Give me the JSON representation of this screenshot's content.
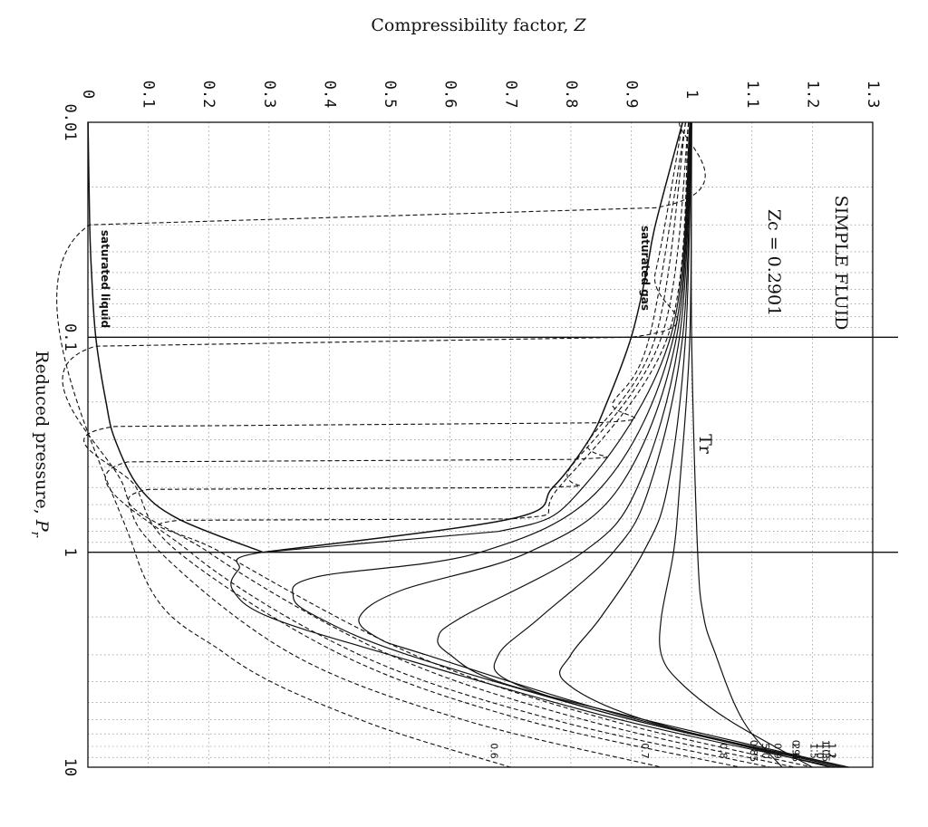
{
  "chart_data": {
    "type": "line",
    "title": "",
    "xlabel": "Reduced pressure, P_r",
    "xlabel_prefix": "Reduced pressure, ",
    "xlabel_var": "P",
    "xlabel_sub": "r",
    "ylabel": "Compressibility factor, Z",
    "ylabel_prefix": "Compressibility factor, ",
    "ylabel_var": "Z",
    "x_scale": "log",
    "xlim": [
      0.01,
      10
    ],
    "ylim": [
      0,
      1.3
    ],
    "x_tick_labels": [
      "0.01",
      "0.1",
      "1",
      "10"
    ],
    "y_tick_labels": [
      "0",
      "0.1",
      "0.2",
      "0.3",
      "0.4",
      "0.5",
      "0.6",
      "0.7",
      "0.8",
      "0.9",
      "1",
      "1.1",
      "1.2",
      "1.3"
    ],
    "grid": true,
    "orientation": "rotated 90° clockwise",
    "annotations": {
      "fluid": "SIMPLE FLUID",
      "zc": "Zc = 0.2901",
      "tr": "Tr",
      "saturated_gas": "saturated gas",
      "saturated_liquid": "saturated liquid"
    },
    "series": [
      {
        "name": "0.6",
        "style": "dashed",
        "x": [
          0.01,
          0.025,
          0.03,
          1,
          3,
          6,
          10
        ],
        "y": [
          0.98,
          0.94,
          0.003,
          0.078,
          0.23,
          0.45,
          0.7
        ]
      },
      {
        "name": "0.7",
        "style": "dashed",
        "x": [
          0.01,
          0.05,
          0.1,
          0.11,
          0.5,
          1,
          3,
          6,
          10
        ],
        "y": [
          0.985,
          0.94,
          0.9,
          0.013,
          0.06,
          0.12,
          0.34,
          0.62,
          0.95
        ]
      },
      {
        "name": "0.8",
        "style": "dashed",
        "x": [
          0.01,
          0.1,
          0.2,
          0.25,
          0.26,
          0.5,
          1,
          3,
          6,
          10
        ],
        "y": [
          0.99,
          0.93,
          0.87,
          0.84,
          0.045,
          0.08,
          0.15,
          0.42,
          0.72,
          1.08
        ]
      },
      {
        "name": "0.85",
        "style": "dashed",
        "x": [
          0.01,
          0.1,
          0.3,
          0.37,
          0.38,
          1,
          3,
          6,
          10
        ],
        "y": [
          0.99,
          0.94,
          0.83,
          0.8,
          0.066,
          0.17,
          0.45,
          0.77,
          1.13
        ]
      },
      {
        "name": "0.9",
        "style": "dashed",
        "x": [
          0.01,
          0.1,
          0.4,
          0.5,
          0.51,
          1,
          3,
          6,
          10
        ],
        "y": [
          0.995,
          0.95,
          0.8,
          0.76,
          0.1,
          0.2,
          0.5,
          0.82,
          1.17
        ]
      },
      {
        "name": "0.95",
        "style": "dashed",
        "x": [
          0.01,
          0.1,
          0.5,
          0.7,
          0.71,
          1,
          3,
          6,
          10
        ],
        "y": [
          0.995,
          0.96,
          0.78,
          0.7,
          0.15,
          0.22,
          0.54,
          0.86,
          1.2
        ]
      },
      {
        "name": "1.0",
        "style": "solid",
        "x": [
          0.01,
          0.1,
          0.5,
          0.8,
          1,
          1.2,
          1.5,
          2,
          3,
          6,
          10
        ],
        "y": [
          0.997,
          0.965,
          0.82,
          0.68,
          0.29,
          0.25,
          0.24,
          0.3,
          0.5,
          0.88,
          1.24
        ]
      },
      {
        "name": "1.05",
        "style": "solid",
        "x": [
          0.01,
          0.1,
          0.5,
          1,
          1.3,
          1.6,
          2,
          3,
          6,
          10
        ],
        "y": [
          0.998,
          0.97,
          0.85,
          0.65,
          0.38,
          0.34,
          0.38,
          0.53,
          0.9,
          1.25
        ]
      },
      {
        "name": "1.1",
        "style": "solid",
        "x": [
          0.01,
          0.1,
          0.5,
          1,
          1.5,
          2,
          2.5,
          3,
          6,
          10
        ],
        "y": [
          0.998,
          0.975,
          0.88,
          0.73,
          0.52,
          0.45,
          0.48,
          0.56,
          0.91,
          1.26
        ]
      },
      {
        "name": "1.2",
        "style": "solid",
        "x": [
          0.01,
          0.1,
          0.5,
          1,
          2,
          2.5,
          3,
          4,
          6,
          10
        ],
        "y": [
          0.999,
          0.98,
          0.91,
          0.82,
          0.62,
          0.58,
          0.6,
          0.68,
          0.92,
          1.26
        ]
      },
      {
        "name": "1.3",
        "style": "solid",
        "x": [
          0.01,
          0.1,
          0.5,
          1,
          2,
          3,
          4,
          6,
          10
        ],
        "y": [
          0.999,
          0.985,
          0.93,
          0.87,
          0.75,
          0.68,
          0.7,
          0.9,
          1.25
        ]
      },
      {
        "name": "1.5",
        "style": "solid",
        "x": [
          0.01,
          0.1,
          0.5,
          1,
          2,
          3,
          4,
          6,
          10
        ],
        "y": [
          1.0,
          0.99,
          0.96,
          0.92,
          0.85,
          0.8,
          0.79,
          0.92,
          1.23
        ]
      },
      {
        "name": "2.0",
        "style": "solid",
        "x": [
          0.01,
          0.1,
          0.5,
          1,
          2,
          3,
          4,
          6,
          10
        ],
        "y": [
          1.0,
          0.997,
          0.98,
          0.97,
          0.95,
          0.95,
          0.98,
          1.06,
          1.2
        ]
      },
      {
        "name": "5.0",
        "style": "solid",
        "x": [
          0.01,
          0.1,
          1,
          2,
          3,
          5,
          7,
          10
        ],
        "y": [
          1.0,
          1.0,
          1.01,
          1.02,
          1.04,
          1.07,
          1.1,
          1.15
        ]
      }
    ],
    "saturation_gas": {
      "x": [
        0.01,
        0.03,
        0.05,
        0.1,
        0.2,
        0.3,
        0.5,
        0.7,
        1
      ],
      "y": [
        0.985,
        0.94,
        0.925,
        0.9,
        0.86,
        0.83,
        0.77,
        0.7,
        0.29
      ]
    },
    "saturation_liquid": {
      "x": [
        0.01,
        0.03,
        0.05,
        0.1,
        0.2,
        0.3,
        0.5,
        0.7,
        1
      ],
      "y": [
        0.0002,
        0.003,
        0.006,
        0.013,
        0.03,
        0.045,
        0.085,
        0.15,
        0.29
      ]
    }
  }
}
